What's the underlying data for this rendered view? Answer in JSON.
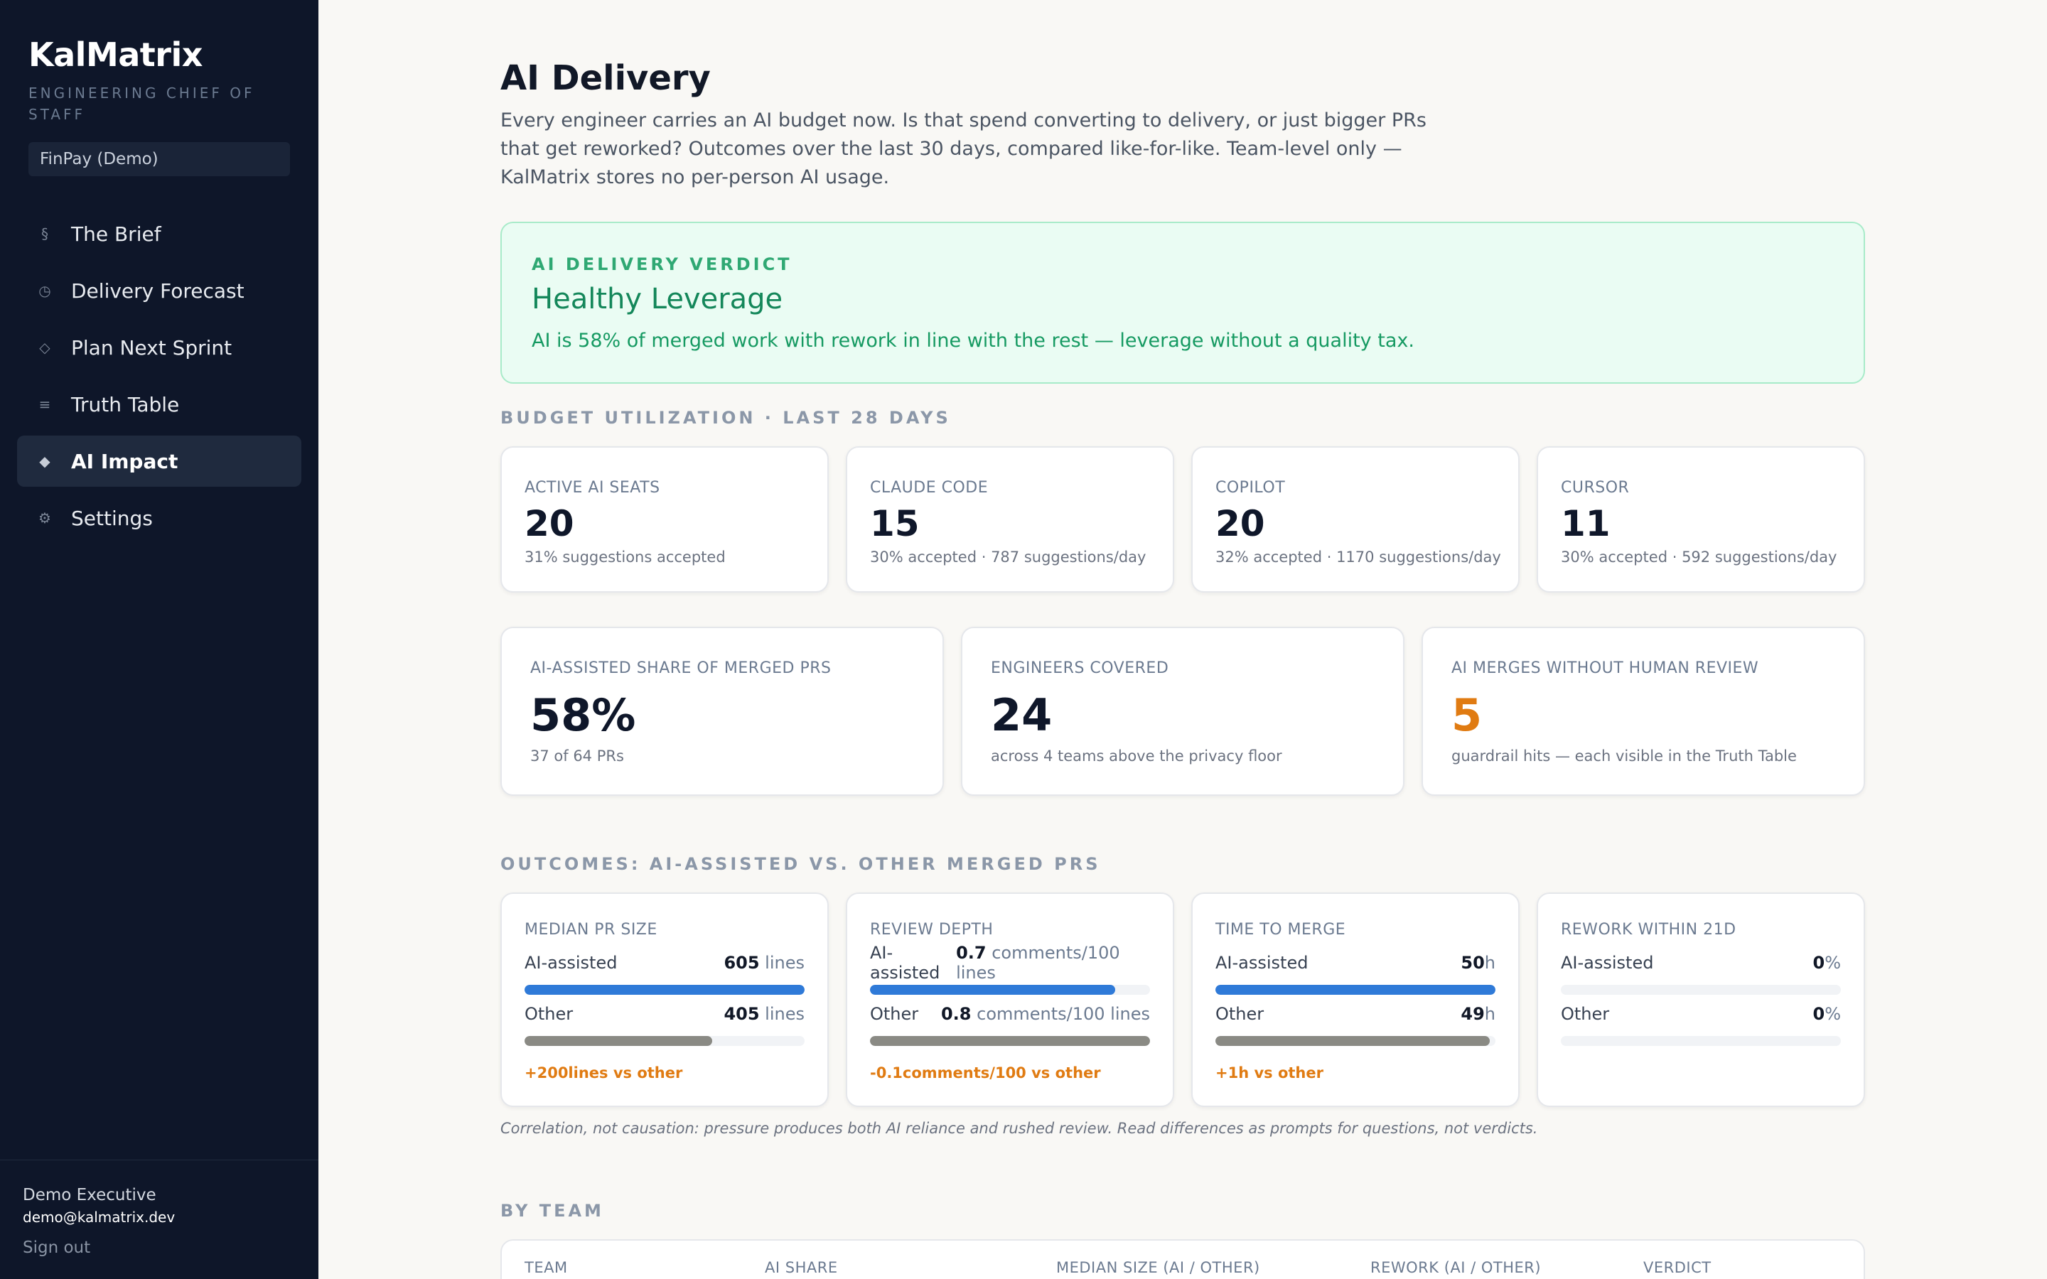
{
  "sidebar": {
    "brand": "KalMatrix",
    "subtitle": "ENGINEERING CHIEF OF STAFF",
    "org": "FinPay (Demo)",
    "items": [
      {
        "icon": "section-icon",
        "glyph": "§",
        "label": "The Brief"
      },
      {
        "icon": "clock-icon",
        "glyph": "◷",
        "label": "Delivery Forecast"
      },
      {
        "icon": "diamond-outline-icon",
        "glyph": "◇",
        "label": "Plan Next Sprint"
      },
      {
        "icon": "list-icon",
        "glyph": "≡",
        "label": "Truth Table"
      },
      {
        "icon": "diamond-filled-icon",
        "glyph": "◆",
        "label": "AI Impact",
        "active": true
      },
      {
        "icon": "gear-icon",
        "glyph": "⚙",
        "label": "Settings"
      }
    ],
    "user": {
      "name": "Demo Executive",
      "email": "demo@kalmatrix.dev",
      "signout": "Sign out"
    }
  },
  "header": {
    "title": "AI Delivery",
    "description": "Every engineer carries an AI budget now. Is that spend converting to delivery, or just bigger PRs that get reworked? Outcomes over the last 30 days, compared like-for-like. Team-level only — KalMatrix stores no per-person AI usage."
  },
  "verdict": {
    "label": "AI DELIVERY VERDICT",
    "title": "Healthy Leverage",
    "text": "AI is 58% of merged work with rework in line with the rest — leverage without a quality tax."
  },
  "budget": {
    "section_label": "BUDGET UTILIZATION · LAST 28 DAYS",
    "cards": [
      {
        "label": "ACTIVE AI SEATS",
        "value": "20",
        "note": "31% suggestions accepted"
      },
      {
        "label": "CLAUDE CODE",
        "value": "15",
        "note": "30% accepted · 787 suggestions/day"
      },
      {
        "label": "COPILOT",
        "value": "20",
        "note": "32% accepted · 1170 suggestions/day"
      },
      {
        "label": "CURSOR",
        "value": "11",
        "note": "30% accepted · 592 suggestions/day"
      }
    ]
  },
  "summary": {
    "cards": [
      {
        "label": "AI-ASSISTED SHARE OF MERGED PRS",
        "value": "58%",
        "note": "37 of 64 PRs"
      },
      {
        "label": "ENGINEERS COVERED",
        "value": "24",
        "note": "across 4 teams above the privacy floor"
      },
      {
        "label": "AI MERGES WITHOUT HUMAN REVIEW",
        "value": "5",
        "note": "guardrail hits — each visible in the Truth Table"
      }
    ],
    "accent_color": "#e07b12"
  },
  "outcomes": {
    "section_label": "OUTCOMES: AI-ASSISTED VS. OTHER MERGED PRS",
    "cards": [
      {
        "label": "MEDIAN PR SIZE",
        "ai": {
          "label": "AI-assisted",
          "value": "605",
          "unit": " lines",
          "fill": 1.0
        },
        "other": {
          "label": "Other",
          "value": "405",
          "unit": " lines",
          "fill": 0.67
        },
        "delta": "+200lines vs other"
      },
      {
        "label": "REVIEW DEPTH",
        "ai": {
          "label": "AI-assisted",
          "value": "0.7",
          "unit": " comments/100 lines",
          "fill": 0.875
        },
        "other": {
          "label": "Other",
          "value": "0.8",
          "unit": " comments/100 lines",
          "fill": 1.0
        },
        "delta": "-0.1comments/100 vs other"
      },
      {
        "label": "TIME TO MERGE",
        "ai": {
          "label": "AI-assisted",
          "value": "50",
          "unit": "h",
          "fill": 1.0
        },
        "other": {
          "label": "Other",
          "value": "49",
          "unit": "h",
          "fill": 0.98
        },
        "delta": "+1h vs other"
      },
      {
        "label": "REWORK WITHIN 21D",
        "ai": {
          "label": "AI-assisted",
          "value": "0",
          "unit": "%",
          "fill": 0
        },
        "other": {
          "label": "Other",
          "value": "0",
          "unit": "%",
          "fill": 0
        },
        "delta": ""
      }
    ],
    "caption": "Correlation, not causation: pressure produces both AI reliance and rushed review. Read differences as prompts for questions, not verdicts."
  },
  "by_team": {
    "section_label": "BY TEAM",
    "columns": [
      "TEAM",
      "AI SHARE",
      "MEDIAN SIZE (AI / OTHER)",
      "REWORK (AI / OTHER)",
      "VERDICT"
    ]
  }
}
